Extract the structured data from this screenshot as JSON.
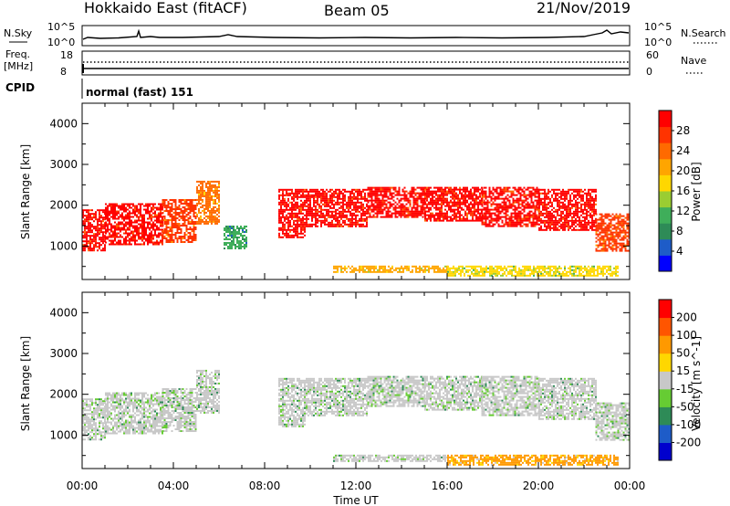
{
  "header": {
    "station": "Hokkaido East (fitACF)",
    "beam": "Beam 05",
    "date": "21/Nov/2019"
  },
  "panels": {
    "nsky_label": "N.Sky",
    "nsky_ticks": [
      "10^5",
      "10^0"
    ],
    "nsearch_label": "N.Search",
    "freq_label_1": "Freq.",
    "freq_label_2": "[MHz]",
    "freq_ticks": [
      "18",
      "8"
    ],
    "nave_label": "Nave",
    "nave_ticks": [
      "60",
      "0"
    ],
    "cpid_label": "CPID",
    "cpid_value": "normal (fast) 151"
  },
  "chart_data": [
    {
      "type": "heatmap",
      "name": "power",
      "ylabel": "Slant Range [km]",
      "xlabel": "",
      "x_ticks": [
        "00:00",
        "04:00",
        "08:00",
        "12:00",
        "16:00",
        "20:00",
        "00:00"
      ],
      "x_range_hours": [
        0,
        24
      ],
      "y_ticks": [
        1000,
        2000,
        3000,
        4000
      ],
      "ylim": [
        180,
        4500
      ],
      "colorbar": {
        "label": "Power [dB]",
        "ticks": [
          "4",
          "8",
          "12",
          "16",
          "20",
          "24",
          "28"
        ],
        "colors": [
          "#0000ff",
          "#1e5cc8",
          "#2e8b57",
          "#3fae5a",
          "#9acd32",
          "#ffd700",
          "#ffa500",
          "#ff6a00",
          "#ff3300",
          "#ff0000"
        ]
      },
      "regions": [
        {
          "t0": 0.0,
          "t1": 1.0,
          "r0": 900,
          "r1": 1900,
          "level": 9
        },
        {
          "t0": 1.0,
          "t1": 3.5,
          "r0": 1050,
          "r1": 2050,
          "level": 9
        },
        {
          "t0": 3.5,
          "t1": 5.0,
          "r0": 1100,
          "r1": 2150,
          "level": 8
        },
        {
          "t0": 5.0,
          "t1": 6.0,
          "r0": 1550,
          "r1": 2600,
          "level": 7
        },
        {
          "t0": 6.2,
          "t1": 7.2,
          "r0": 950,
          "r1": 1500,
          "level": 3
        },
        {
          "t0": 8.6,
          "t1": 9.8,
          "r0": 1200,
          "r1": 2400,
          "level": 9
        },
        {
          "t0": 9.8,
          "t1": 12.5,
          "r0": 1500,
          "r1": 2400,
          "level": 9
        },
        {
          "t0": 12.5,
          "t1": 15.0,
          "r0": 1700,
          "r1": 2450,
          "level": 9
        },
        {
          "t0": 15.0,
          "t1": 17.5,
          "r0": 1600,
          "r1": 2450,
          "level": 9
        },
        {
          "t0": 17.5,
          "t1": 20.0,
          "r0": 1500,
          "r1": 2450,
          "level": 9
        },
        {
          "t0": 20.0,
          "t1": 22.5,
          "r0": 1400,
          "r1": 2400,
          "level": 9
        },
        {
          "t0": 22.5,
          "t1": 24.0,
          "r0": 900,
          "r1": 1800,
          "level": 8
        },
        {
          "t0": 11.0,
          "t1": 16.0,
          "r0": 350,
          "r1": 520,
          "level": 6
        },
        {
          "t0": 16.0,
          "t1": 23.5,
          "r0": 260,
          "r1": 520,
          "level": 5
        }
      ]
    },
    {
      "type": "heatmap",
      "name": "velocity",
      "ylabel": "Slant Range [km]",
      "xlabel": "Time UT",
      "x_ticks": [
        "00:00",
        "04:00",
        "08:00",
        "12:00",
        "16:00",
        "20:00",
        "00:00"
      ],
      "x_range_hours": [
        0,
        24
      ],
      "y_ticks": [
        1000,
        2000,
        3000,
        4000
      ],
      "ylim": [
        180,
        4500
      ],
      "colorbar": {
        "label": "Velocity [m s^-1]",
        "ticks": [
          "200",
          "100",
          "50",
          "15",
          "-15",
          "-50",
          "-100",
          "-200"
        ],
        "colors": [
          "#0000cd",
          "#1e5cc8",
          "#2e8b57",
          "#66cc33",
          "#c8c8c8",
          "#ffd700",
          "#ff9900",
          "#ff5500",
          "#ff0000"
        ]
      },
      "regions": [
        {
          "t0": 0.0,
          "t1": 1.0,
          "r0": 900,
          "r1": 1900,
          "level": 4
        },
        {
          "t0": 1.0,
          "t1": 3.5,
          "r0": 1050,
          "r1": 2050,
          "level": 4
        },
        {
          "t0": 3.5,
          "t1": 5.0,
          "r0": 1100,
          "r1": 2150,
          "level": 4
        },
        {
          "t0": 5.0,
          "t1": 6.0,
          "r0": 1550,
          "r1": 2600,
          "level": 4
        },
        {
          "t0": 8.6,
          "t1": 9.8,
          "r0": 1200,
          "r1": 2400,
          "level": 4
        },
        {
          "t0": 9.8,
          "t1": 12.5,
          "r0": 1500,
          "r1": 2400,
          "level": 4
        },
        {
          "t0": 12.5,
          "t1": 15.0,
          "r0": 1700,
          "r1": 2450,
          "level": 4
        },
        {
          "t0": 15.0,
          "t1": 17.5,
          "r0": 1600,
          "r1": 2450,
          "level": 4
        },
        {
          "t0": 17.5,
          "t1": 20.0,
          "r0": 1500,
          "r1": 2450,
          "level": 4
        },
        {
          "t0": 20.0,
          "t1": 22.5,
          "r0": 1400,
          "r1": 2400,
          "level": 4
        },
        {
          "t0": 22.5,
          "t1": 24.0,
          "r0": 900,
          "r1": 1800,
          "level": 4
        },
        {
          "t0": 11.0,
          "t1": 16.0,
          "r0": 350,
          "r1": 520,
          "level": 4
        },
        {
          "t0": 16.0,
          "t1": 23.5,
          "r0": 260,
          "r1": 520,
          "level": 6
        }
      ]
    }
  ]
}
